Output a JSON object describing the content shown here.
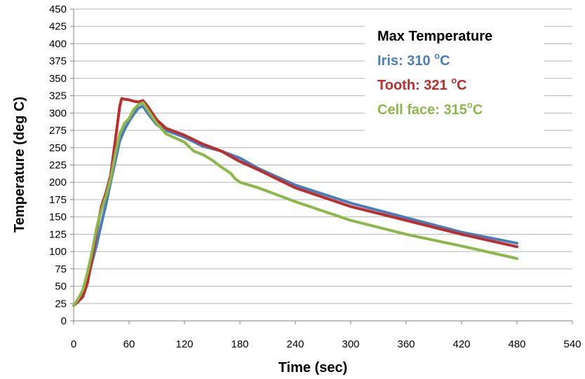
{
  "chart_data": {
    "type": "line",
    "xlabel": "Time (sec)",
    "ylabel": "Temperature (deg C)",
    "xlim": [
      0,
      540
    ],
    "ylim": [
      0,
      450
    ],
    "x_ticks": [
      0,
      60,
      120,
      180,
      240,
      300,
      360,
      420,
      480,
      540
    ],
    "y_ticks": [
      0,
      25,
      50,
      75,
      100,
      125,
      150,
      175,
      200,
      225,
      250,
      275,
      300,
      325,
      350,
      375,
      400,
      425,
      450
    ],
    "grid": "horizontal",
    "legend": {
      "placement": "top-right",
      "title": "Max Temperature",
      "entries": [
        {
          "prefix": "Iris: 310 ",
          "sup": "o",
          "suffix": "C",
          "color": "#4a7ebb"
        },
        {
          "prefix": "Tooth: 321 ",
          "sup": "o",
          "suffix": "C",
          "color": "#be2d2d"
        },
        {
          "prefix": "Cell face: 315",
          "sup": "o",
          "suffix": "C",
          "color": "#8cb84a"
        }
      ]
    },
    "series": [
      {
        "name": "Iris",
        "color": "#4a7ebb",
        "x": [
          0,
          5,
          10,
          15,
          20,
          25,
          30,
          35,
          40,
          45,
          50,
          55,
          60,
          65,
          70,
          75,
          80,
          90,
          100,
          120,
          140,
          160,
          180,
          200,
          240,
          300,
          360,
          420,
          480
        ],
        "y": [
          22,
          28,
          40,
          60,
          85,
          110,
          140,
          168,
          200,
          230,
          260,
          276,
          288,
          298,
          307,
          310,
          300,
          283,
          275,
          265,
          252,
          245,
          235,
          220,
          196,
          170,
          149,
          128,
          112
        ]
      },
      {
        "name": "Tooth",
        "color": "#be2d2d",
        "x": [
          0,
          5,
          10,
          15,
          20,
          25,
          30,
          35,
          40,
          45,
          50,
          52,
          55,
          60,
          65,
          70,
          75,
          80,
          90,
          100,
          120,
          140,
          160,
          180,
          200,
          240,
          300,
          360,
          420,
          480
        ],
        "y": [
          22,
          28,
          35,
          55,
          90,
          130,
          165,
          185,
          210,
          260,
          310,
          321,
          320,
          319,
          317,
          316,
          318,
          310,
          290,
          278,
          268,
          255,
          245,
          230,
          218,
          192,
          165,
          145,
          125,
          107
        ]
      },
      {
        "name": "Cell face",
        "color": "#8cb84a",
        "x": [
          0,
          5,
          10,
          15,
          20,
          25,
          30,
          35,
          40,
          45,
          50,
          55,
          60,
          65,
          70,
          75,
          80,
          90,
          100,
          120,
          130,
          140,
          150,
          160,
          170,
          175,
          180,
          200,
          240,
          300,
          360,
          420,
          480
        ],
        "y": [
          22,
          32,
          45,
          70,
          100,
          135,
          160,
          180,
          205,
          240,
          270,
          285,
          292,
          305,
          312,
          315,
          305,
          285,
          270,
          258,
          245,
          240,
          232,
          222,
          213,
          205,
          200,
          192,
          172,
          145,
          125,
          108,
          90
        ]
      }
    ]
  }
}
